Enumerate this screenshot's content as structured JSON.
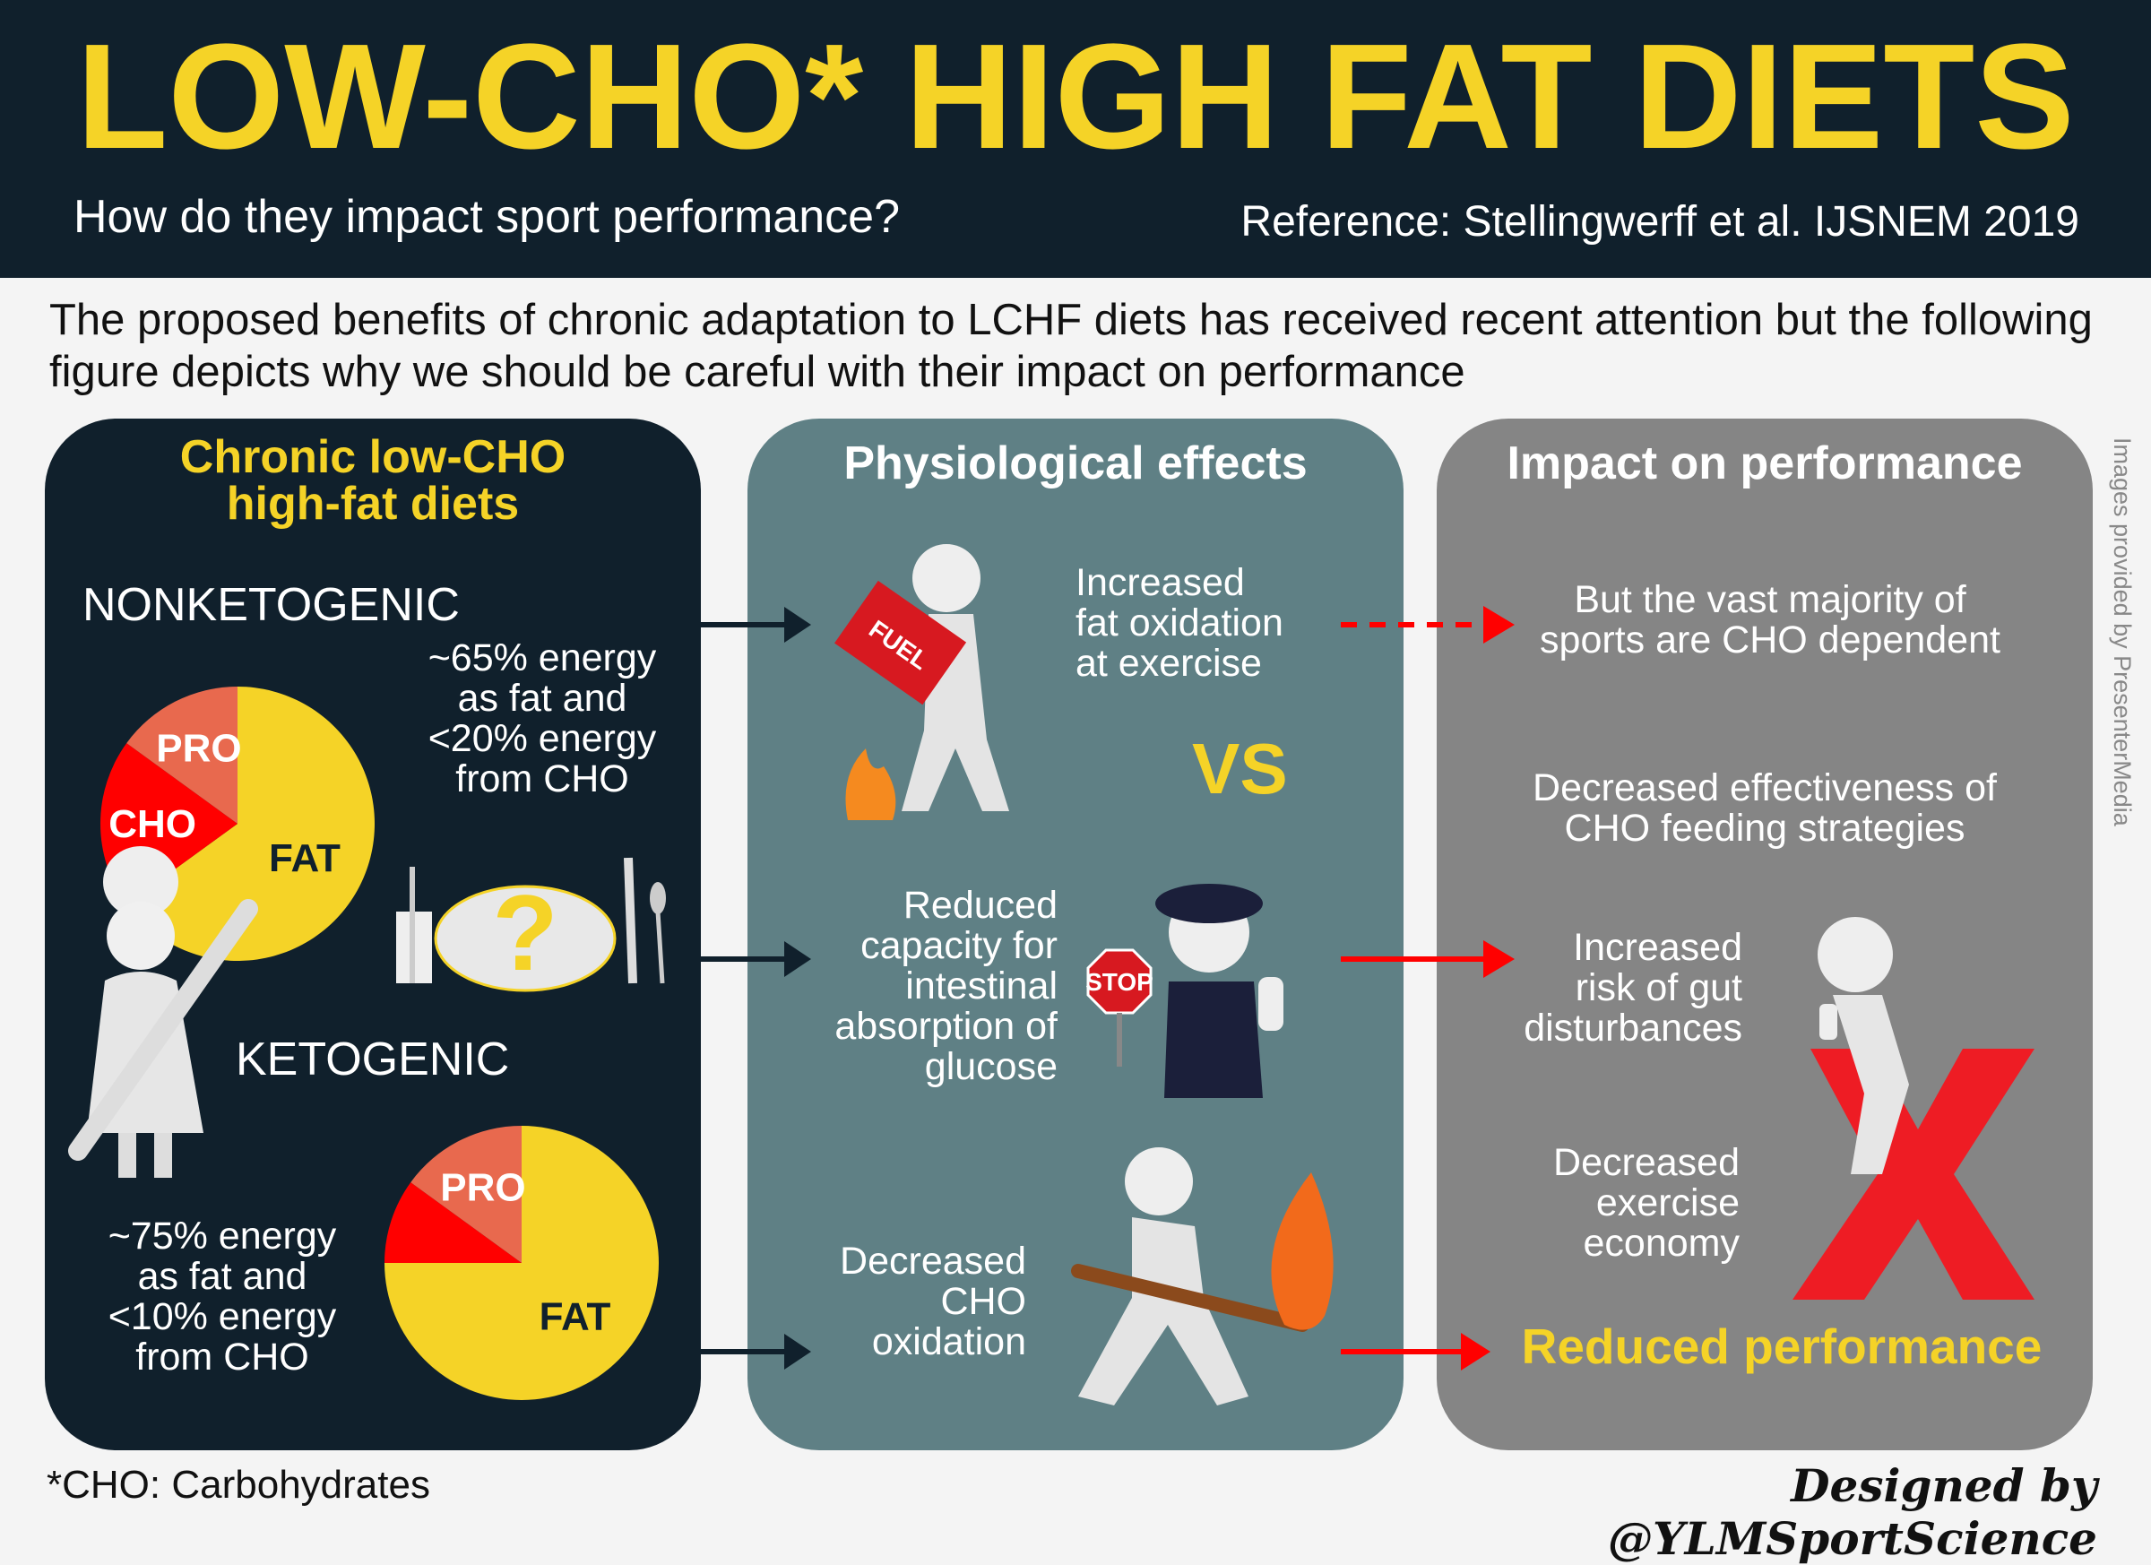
{
  "header": {
    "title": "LOW-CHO* HIGH FAT DIETS",
    "subtitle": "How do they impact sport performance?",
    "reference": "Reference: Stellingwerff et al. IJSNEM 2019"
  },
  "intro": "The proposed benefits of chronic adaptation to LCHF diets has received recent attention but the following figure depicts why we should be careful with their impact on performance",
  "left_panel": {
    "title_line1": "Chronic low-CHO",
    "title_line2": "high-fat diets",
    "nonketogenic": {
      "label": "NONKETOGENIC",
      "desc": [
        "~65% energy",
        "as fat and",
        "<20% energy",
        "from CHO"
      ]
    },
    "ketogenic": {
      "label": "KETOGENIC",
      "desc": [
        "~75% energy",
        "as fat and",
        "<10% energy",
        "from CHO"
      ]
    }
  },
  "chart_data": [
    {
      "type": "pie",
      "title": "",
      "categories": [
        "FAT",
        "CHO",
        "PRO"
      ],
      "values": [
        65,
        20,
        15
      ],
      "labels": {
        "FAT": "FAT",
        "CHO": "CHO",
        "PRO": "PRO"
      }
    },
    {
      "type": "pie",
      "title": "",
      "categories": [
        "FAT",
        "CHO",
        "PRO"
      ],
      "values": [
        75,
        10,
        15
      ],
      "labels": {
        "FAT": "FAT",
        "CHO": "",
        "PRO": "PRO"
      }
    }
  ],
  "mid_panel": {
    "title": "Physiological effects",
    "effect1": [
      "Increased",
      "fat oxidation",
      "at exercise"
    ],
    "vs": "VS",
    "effect2": [
      "Reduced",
      "capacity for",
      "intestinal",
      "absorption of",
      "glucose"
    ],
    "effect3": [
      "Decreased",
      "CHO",
      "oxidation"
    ],
    "fuel_label": "FUEL",
    "stop_label": "STOP"
  },
  "right_panel": {
    "title": "Impact on performance",
    "impact1": [
      "But the vast majority of",
      "sports are CHO dependent"
    ],
    "impact2": [
      "Decreased effectiveness of",
      "CHO feeding strategies"
    ],
    "impact3": [
      "Increased",
      "risk of gut",
      "disturbances"
    ],
    "impact4": [
      "Decreased",
      "exercise",
      "economy"
    ],
    "result": "Reduced performance"
  },
  "credit": "Images provided by PresenterMedia",
  "footnote": "*CHO: Carbohydrates",
  "designed_by": "Designed by @YLMSportScience",
  "colors": {
    "dark": "#10202c",
    "yellow": "#f5d327",
    "teal": "#5f8085",
    "gray": "#858585",
    "red": "#ff0000",
    "salmon": "#e8694e"
  }
}
